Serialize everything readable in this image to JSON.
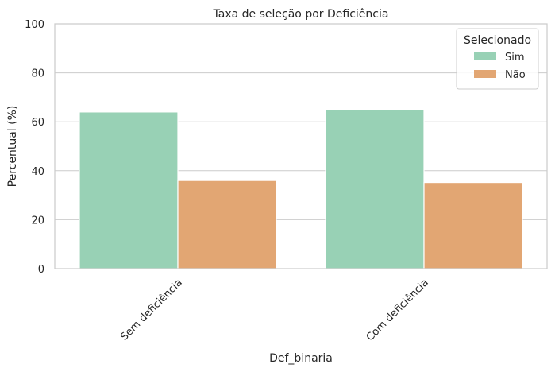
{
  "chart_data": {
    "type": "bar",
    "title": "Taxa de seleção por Deficiência",
    "xlabel": "Def_binaria",
    "ylabel": "Percentual (%)",
    "categories": [
      "Sem deficiência",
      "Com deficiência"
    ],
    "series": [
      {
        "name": "Sim",
        "values": [
          64.0,
          65.0
        ],
        "color": "#98d1b5"
      },
      {
        "name": "Não",
        "values": [
          36.0,
          35.2
        ],
        "color": "#e2a673"
      }
    ],
    "ylim": [
      0,
      100
    ],
    "yticks": [
      0,
      20,
      40,
      60,
      80,
      100
    ],
    "grid": "horizontal",
    "legend": {
      "title": "Selecionado",
      "placement": "top-right"
    }
  }
}
